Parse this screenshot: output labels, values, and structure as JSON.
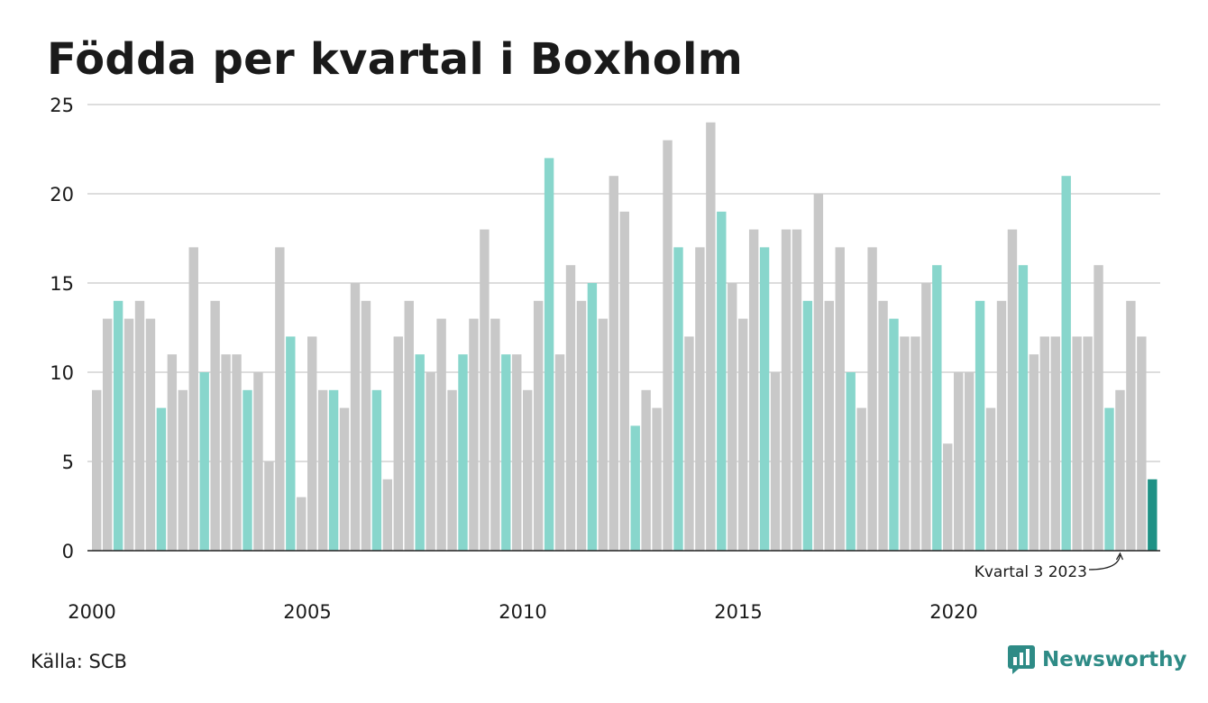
{
  "title": "Födda per kvartal i Boxholm",
  "source": "Källa: SCB",
  "brand": {
    "name": "Newsworthy",
    "icon": "newsworthy-logo-icon"
  },
  "colors": {
    "default": "#c8c8c8",
    "highlight": "#88d6cc",
    "latest": "#1e9185",
    "grid": "#dddddd",
    "axis": "#222222"
  },
  "chart_data": {
    "type": "bar",
    "title": "Födda per kvartal i Boxholm",
    "xlabel": "",
    "ylabel": "",
    "ylim": [
      0,
      25
    ],
    "yticks": [
      "0",
      "5",
      "10",
      "15",
      "20",
      "25"
    ],
    "xticks": [
      {
        "label": "2000",
        "year": 2000
      },
      {
        "label": "2005",
        "year": 2005
      },
      {
        "label": "2010",
        "year": 2010
      },
      {
        "label": "2015",
        "year": 2015
      },
      {
        "label": "2020",
        "year": 2020
      }
    ],
    "grid": true,
    "start_year": 2000,
    "highlight_quarter": 2,
    "values": [
      9,
      13,
      14,
      13,
      14,
      13,
      8,
      11,
      9,
      17,
      10,
      14,
      11,
      11,
      9,
      10,
      5,
      17,
      12,
      3,
      12,
      9,
      9,
      8,
      15,
      14,
      9,
      4,
      12,
      14,
      11,
      10,
      13,
      9,
      11,
      13,
      18,
      13,
      11,
      11,
      9,
      14,
      22,
      11,
      16,
      14,
      15,
      13,
      21,
      19,
      7,
      9,
      8,
      23,
      17,
      12,
      17,
      24,
      19,
      15,
      13,
      18,
      17,
      10,
      18,
      18,
      14,
      20,
      14,
      17,
      10,
      8,
      17,
      14,
      13,
      12,
      12,
      15,
      16,
      6,
      10,
      10,
      14,
      8,
      14,
      18,
      16,
      11,
      12,
      12,
      21,
      12,
      12,
      16,
      8,
      9,
      14,
      12,
      4
    ],
    "annotation": {
      "text": "Kvartal 3 2023"
    }
  }
}
